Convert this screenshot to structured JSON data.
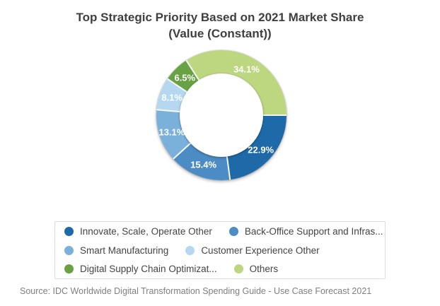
{
  "title": {
    "line1": "Top Strategic Priority Based on 2021 Market Share",
    "line2": "(Value (Constant))"
  },
  "source": "Source: IDC Worldwide Digital Transformation Spending Guide - Use Case Forecast 2021",
  "chart_data": {
    "type": "pie",
    "subtype": "donut",
    "title": "Top Strategic Priority Based on 2021 Market Share (Value (Constant))",
    "legend_position": "bottom",
    "start_angle_deg": 90,
    "label_color": "#ffffff",
    "segments": [
      {
        "name": "Innovate, Scale, Operate Other",
        "value": 22.9,
        "percent_label": "22.9%",
        "color": "#1e6aa8"
      },
      {
        "name": "Back-Office Support and Infras...",
        "value": 15.4,
        "percent_label": "15.4%",
        "color": "#4c8cc4"
      },
      {
        "name": "Smart Manufacturing",
        "value": 13.1,
        "percent_label": "13.1%",
        "color": "#7ab1db"
      },
      {
        "name": "Customer Experience Other",
        "value": 8.1,
        "percent_label": "8.1%",
        "color": "#b5d8f0"
      },
      {
        "name": "Digital Supply Chain Optimizat...",
        "value": 6.5,
        "percent_label": "6.5%",
        "color": "#68a243"
      },
      {
        "name": "Others",
        "value": 34.1,
        "percent_label": "34.1%",
        "color": "#bdd680"
      }
    ]
  }
}
